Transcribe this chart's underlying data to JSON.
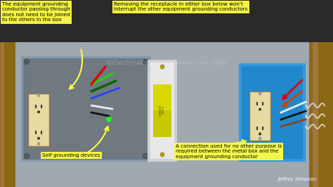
{
  "bg_color": "#2a2a2a",
  "wall_color": "#8B6914",
  "wall_color2": "#A0783C",
  "box_bg": "#b0b8c0",
  "box_outline": "#808890",
  "blue_box_color": "#3399dd",
  "switch_color": "#d0d0d0",
  "switch_accent": "#c8c800",
  "outlet_color": "#d4c88a",
  "outlet_bg": "#e8daa0",
  "label_bg": "#ffff44",
  "label_text": "#000000",
  "watermark_color": "#ffffff",
  "watermark_alpha": 0.25,
  "author_color": "#ffffff",
  "arrow_color": "#ffff44",
  "green_wire": "#22cc22",
  "dark_green_wire": "#006600",
  "red_wire": "#dd0000",
  "white_wire": "#eeeeee",
  "black_wire": "#111111",
  "blue_wire": "#2244ff",
  "brown_wire": "#884422",
  "title1": "The equipment grounding\nconductor passing through\ndoes not need to be joined\nto the others in the box",
  "title2": "Removing the receptacle in either box below won’t\ninterrupt the other equipment grounding conductors",
  "label3": "Self grounding devices",
  "label4": "A connection used for no other purpose is\nrequired between the metal box and the\nequipment grounding conductor",
  "watermark": "©ElectricalLicenseRenewal.Com 2020",
  "author": "Jeffrey Simpson"
}
